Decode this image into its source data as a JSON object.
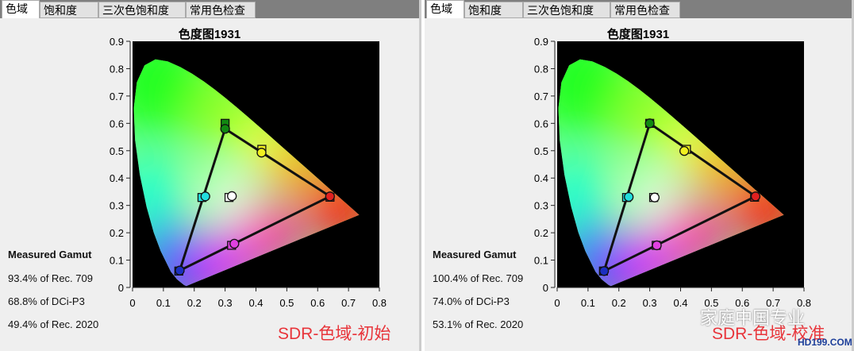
{
  "tabs": [
    "色域",
    "饱和度",
    "三次色饱和度",
    "常用色检查"
  ],
  "chart_title": "色度图1931",
  "panels": [
    {
      "gamut_heading": "Measured Gamut",
      "gamut_lines": [
        "93.4% of Rec. 709",
        "68.8% of DCi-P3",
        "49.4% of Rec. 2020"
      ],
      "caption": "SDR-色域-初始",
      "chart_data": {
        "type": "scatter",
        "title": "色度图1931",
        "xlim": [
          0,
          0.8
        ],
        "ylim": [
          0,
          0.9
        ],
        "x_ticks": [
          "0",
          "0.1",
          "0.2",
          "0.3",
          "0.4",
          "0.5",
          "0.6",
          "0.7",
          "0.8"
        ],
        "y_ticks": [
          "0",
          "0.1",
          "0.2",
          "0.3",
          "0.4",
          "0.5",
          "0.6",
          "0.7",
          "0.8",
          "0.9"
        ],
        "targets": [
          {
            "name": "red",
            "x": 0.64,
            "y": 0.33
          },
          {
            "name": "green",
            "x": 0.3,
            "y": 0.6
          },
          {
            "name": "blue",
            "x": 0.15,
            "y": 0.06
          },
          {
            "name": "cyan",
            "x": 0.225,
            "y": 0.329
          },
          {
            "name": "magenta",
            "x": 0.321,
            "y": 0.154
          },
          {
            "name": "yellow",
            "x": 0.419,
            "y": 0.505
          },
          {
            "name": "white",
            "x": 0.3127,
            "y": 0.329
          }
        ],
        "measured": [
          {
            "name": "red",
            "x": 0.64,
            "y": 0.333
          },
          {
            "name": "green",
            "x": 0.3,
            "y": 0.58
          },
          {
            "name": "blue",
            "x": 0.153,
            "y": 0.062
          },
          {
            "name": "cyan",
            "x": 0.236,
            "y": 0.333
          },
          {
            "name": "magenta",
            "x": 0.33,
            "y": 0.16
          },
          {
            "name": "yellow",
            "x": 0.418,
            "y": 0.493
          },
          {
            "name": "white",
            "x": 0.322,
            "y": 0.334
          }
        ]
      }
    },
    {
      "gamut_heading": "Measured Gamut",
      "gamut_lines": [
        "100.4% of Rec. 709",
        "74.0% of DCi-P3",
        "53.1% of Rec. 2020"
      ],
      "caption": "SDR-色域-校准",
      "chart_data": {
        "type": "scatter",
        "title": "色度图1931",
        "xlim": [
          0,
          0.8
        ],
        "ylim": [
          0,
          0.9
        ],
        "x_ticks": [
          "0",
          "0.1",
          "0.2",
          "0.3",
          "0.4",
          "0.5",
          "0.6",
          "0.7",
          "0.8"
        ],
        "y_ticks": [
          "0",
          "0.1",
          "0.2",
          "0.3",
          "0.4",
          "0.5",
          "0.6",
          "0.7",
          "0.8",
          "0.9"
        ],
        "targets": [
          {
            "name": "red",
            "x": 0.64,
            "y": 0.33
          },
          {
            "name": "green",
            "x": 0.3,
            "y": 0.6
          },
          {
            "name": "blue",
            "x": 0.15,
            "y": 0.06
          },
          {
            "name": "cyan",
            "x": 0.225,
            "y": 0.329
          },
          {
            "name": "magenta",
            "x": 0.321,
            "y": 0.154
          },
          {
            "name": "yellow",
            "x": 0.419,
            "y": 0.505
          },
          {
            "name": "white",
            "x": 0.3127,
            "y": 0.329
          }
        ],
        "measured": [
          {
            "name": "red",
            "x": 0.643,
            "y": 0.333
          },
          {
            "name": "green",
            "x": 0.3,
            "y": 0.6
          },
          {
            "name": "blue",
            "x": 0.152,
            "y": 0.06
          },
          {
            "name": "cyan",
            "x": 0.232,
            "y": 0.331
          },
          {
            "name": "magenta",
            "x": 0.323,
            "y": 0.154
          },
          {
            "name": "yellow",
            "x": 0.412,
            "y": 0.499
          },
          {
            "name": "white",
            "x": 0.316,
            "y": 0.329
          }
        ]
      }
    }
  ],
  "watermark": "家庭中国专业",
  "watermark_site": "HD199.COM",
  "colors": {
    "red": "#e02020",
    "green": "#118811",
    "blue": "#1c2fbf",
    "cyan": "#22dddd",
    "magenta": "#e040e0",
    "yellow": "#f0f020",
    "white": "#ffffff",
    "caption": "#e8343a"
  }
}
